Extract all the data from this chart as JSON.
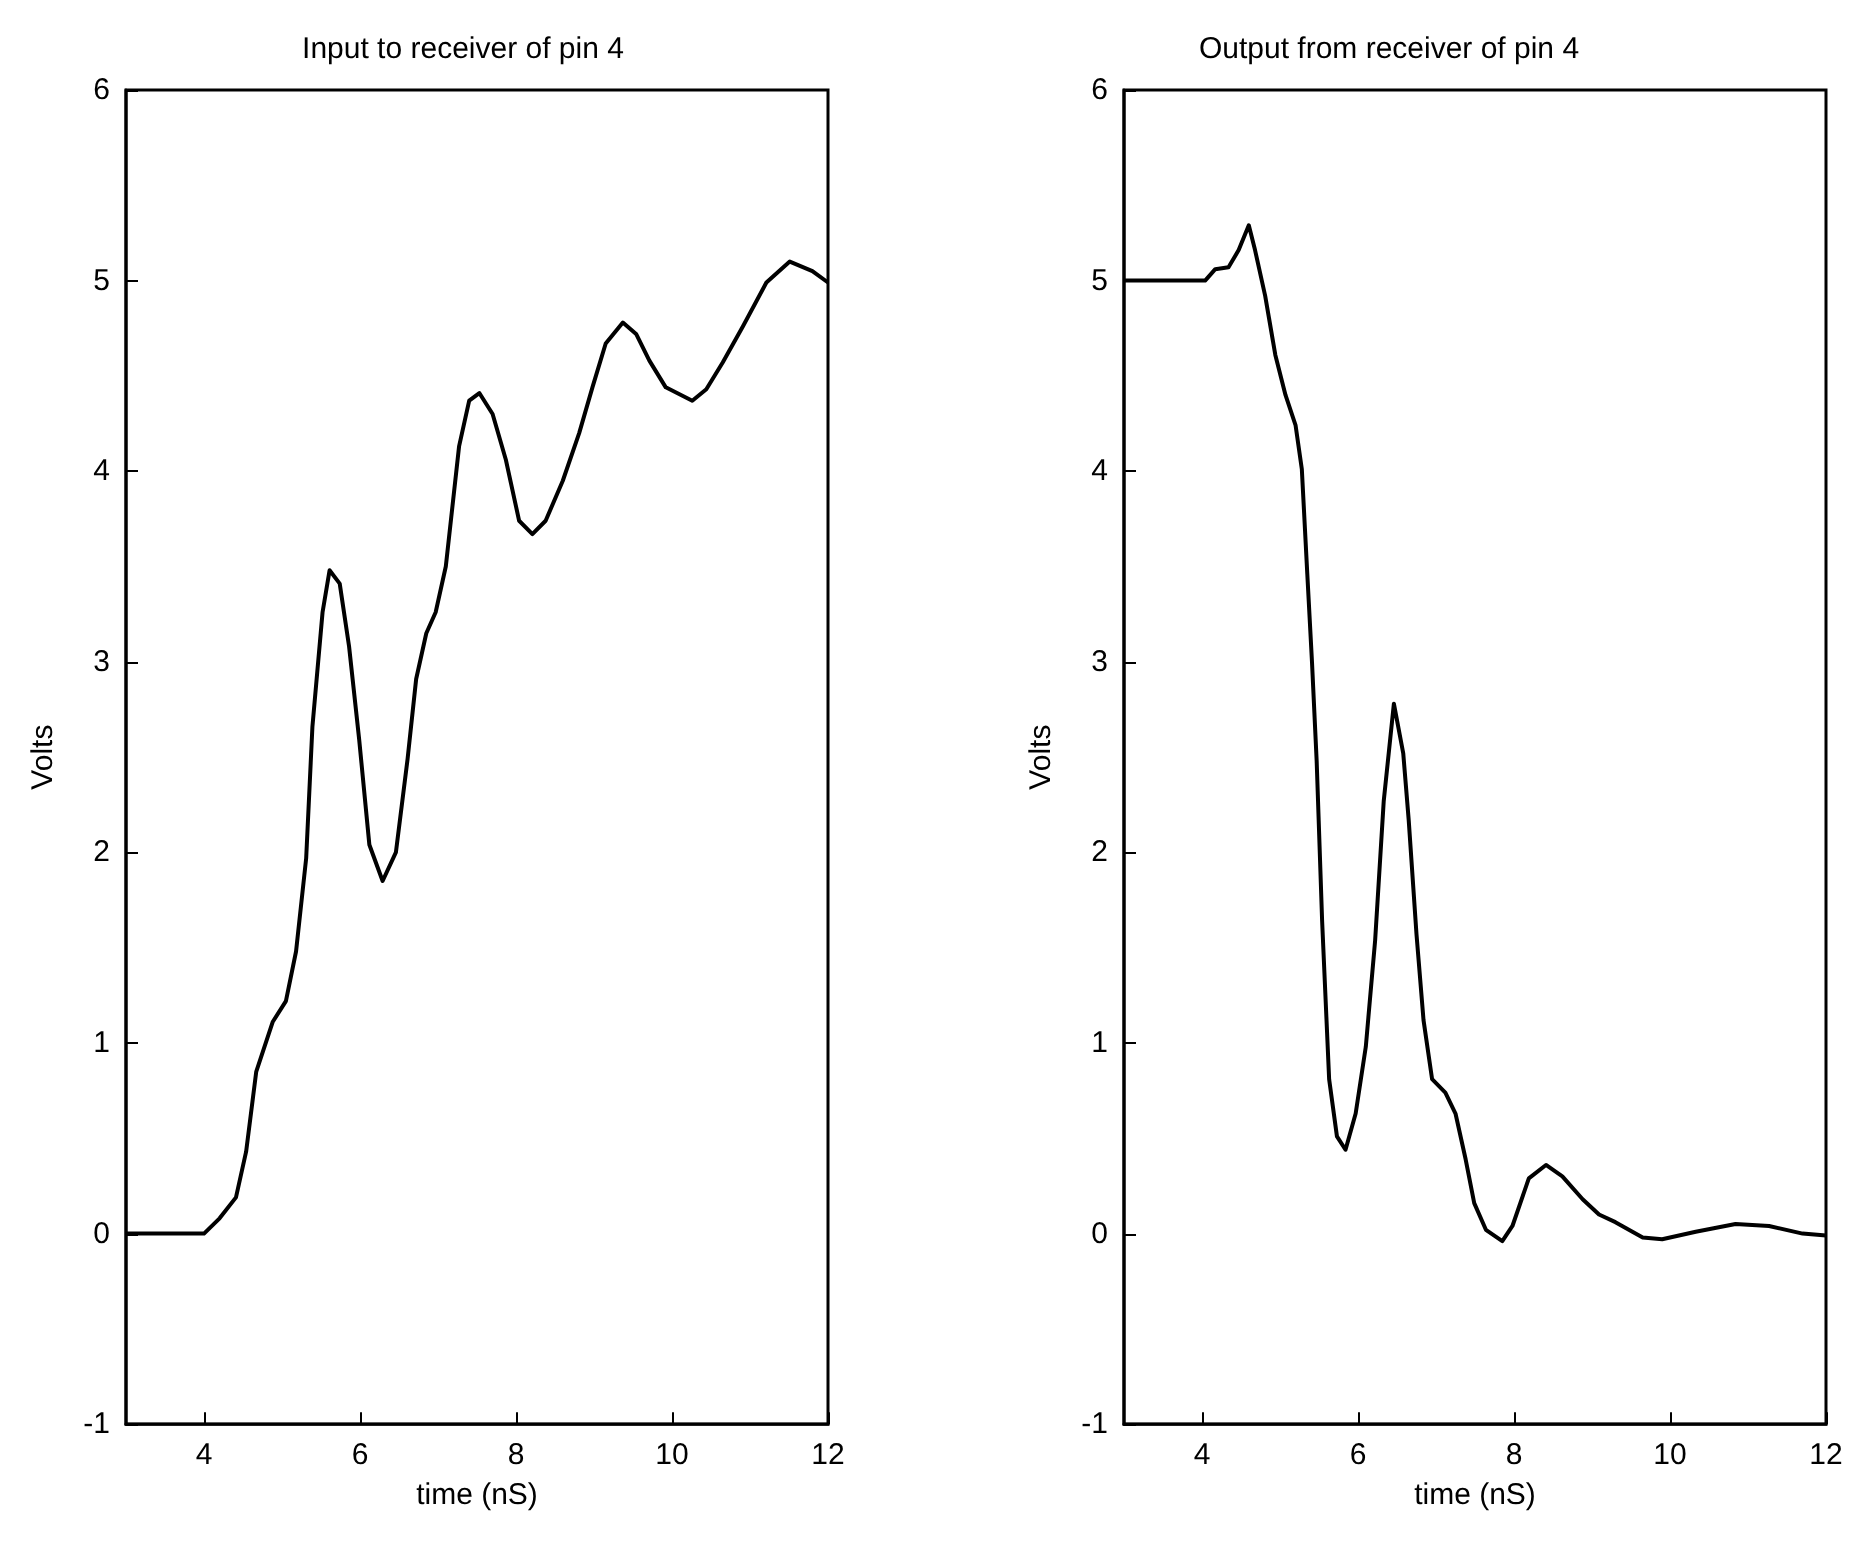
{
  "chart_data": [
    {
      "type": "line",
      "title": "Input to receiver of pin 4",
      "xlabel": "time (nS)",
      "ylabel": "Volts",
      "color": "#000000",
      "grid": false,
      "x": [
        3,
        4.0,
        4.2,
        4.41,
        4.54,
        4.67,
        4.88,
        5.05,
        5.18,
        5.31,
        5.39,
        5.52,
        5.61,
        5.74,
        5.86,
        5.99,
        6.12,
        6.29,
        6.46,
        6.61,
        6.72,
        6.85,
        6.97,
        7.1,
        7.27,
        7.4,
        7.53,
        7.7,
        7.87,
        8.04,
        8.21,
        8.38,
        8.6,
        8.81,
        8.98,
        9.15,
        9.37,
        9.54,
        9.71,
        9.92,
        10.26,
        10.44,
        10.65,
        10.91,
        11.21,
        11.51,
        11.8,
        12
      ],
      "values": [
        0,
        0,
        0.08,
        0.19,
        0.43,
        0.85,
        1.11,
        1.22,
        1.48,
        1.97,
        2.66,
        3.26,
        3.48,
        3.41,
        3.08,
        2.59,
        2.04,
        1.85,
        2.0,
        2.49,
        2.91,
        3.15,
        3.26,
        3.5,
        4.13,
        4.37,
        4.41,
        4.3,
        4.06,
        3.74,
        3.67,
        3.74,
        3.95,
        4.2,
        4.44,
        4.67,
        4.78,
        4.72,
        4.58,
        4.44,
        4.37,
        4.43,
        4.57,
        4.76,
        4.99,
        5.1,
        5.05,
        4.99
      ],
      "xlim": [
        3,
        12
      ],
      "xticks": [
        4,
        6,
        8,
        10,
        12
      ],
      "ylim": [
        -1,
        6
      ],
      "yticks": [
        -1,
        0,
        1,
        2,
        3,
        4,
        5,
        6
      ]
    },
    {
      "type": "line",
      "title": "Output from receiver of pin 4",
      "xlabel": "time (nS)",
      "ylabel": "Volts",
      "color": "#000000",
      "grid": false,
      "x": [
        3,
        4.04,
        4.17,
        4.34,
        4.47,
        4.6,
        4.68,
        4.81,
        4.94,
        5.07,
        5.2,
        5.28,
        5.35,
        5.41,
        5.47,
        5.54,
        5.63,
        5.73,
        5.84,
        5.97,
        6.1,
        6.22,
        6.33,
        6.46,
        6.58,
        6.65,
        6.75,
        6.84,
        6.95,
        7.12,
        7.25,
        7.38,
        7.49,
        7.64,
        7.85,
        7.98,
        8.19,
        8.41,
        8.62,
        8.88,
        9.09,
        9.3,
        9.65,
        9.9,
        10.33,
        10.84,
        11.27,
        11.7,
        12
      ],
      "values": [
        5.0,
        5.0,
        5.06,
        5.07,
        5.16,
        5.29,
        5.16,
        4.92,
        4.61,
        4.4,
        4.24,
        4.01,
        3.46,
        3.0,
        2.48,
        1.64,
        0.81,
        0.51,
        0.44,
        0.63,
        0.98,
        1.54,
        2.27,
        2.78,
        2.52,
        2.17,
        1.57,
        1.12,
        0.81,
        0.74,
        0.63,
        0.39,
        0.16,
        0.02,
        -0.04,
        0.04,
        0.29,
        0.36,
        0.3,
        0.18,
        0.1,
        0.06,
        -0.02,
        -0.03,
        0.01,
        0.05,
        0.04,
        0.0,
        -0.01
      ],
      "xlim": [
        3,
        12
      ],
      "xticks": [
        4,
        6,
        8,
        10,
        12
      ],
      "ylim": [
        -1,
        6
      ],
      "yticks": [
        -1,
        0,
        1,
        2,
        3,
        4,
        5,
        6
      ]
    }
  ]
}
